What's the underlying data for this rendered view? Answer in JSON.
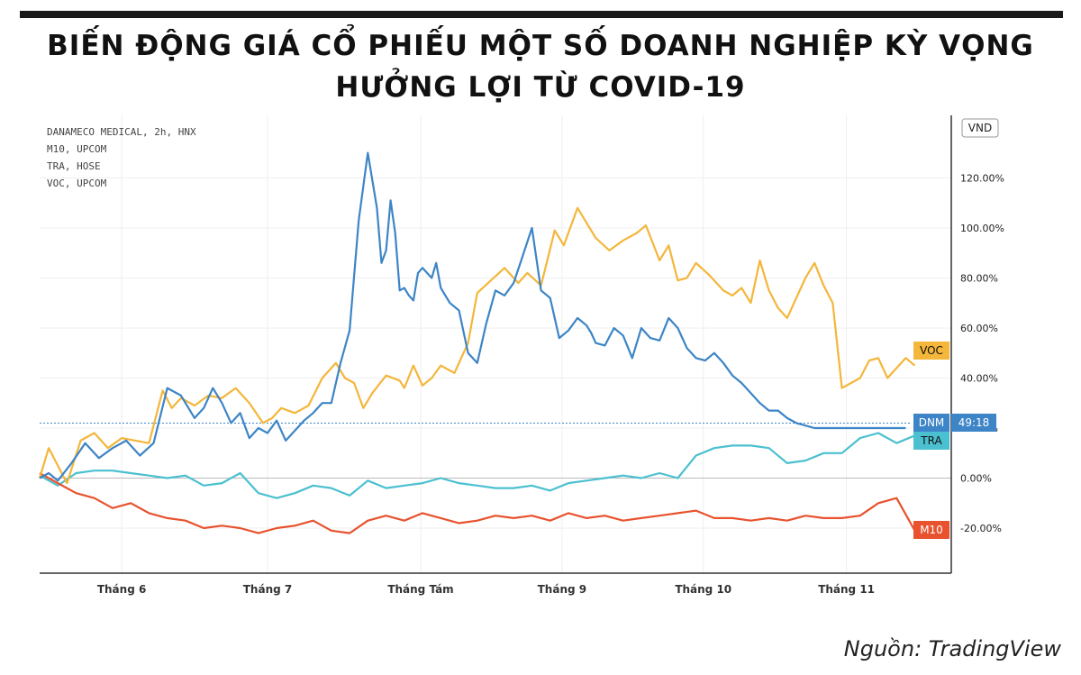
{
  "title": "BIẾN ĐỘNG GIÁ CỔ PHIẾU MỘT SỐ DOANH NGHIỆP KỲ VỌNG HƯỞNG LỢI TỪ COVID-19",
  "title_lines": [
    "BIẾN ĐỘNG GIÁ CỔ PHIẾU MỘT SỐ DOANH NGHIỆP KỲ VỌNG",
    "HƯỞNG LỢI TỪ COVID-19"
  ],
  "source": "Nguồn: TradingView",
  "chart_data": {
    "type": "line",
    "symbols": [
      "DANAMECO MEDICAL, 2h, HNX",
      "M10, UPCOM",
      "TRA, HOSE",
      "VOC, UPCOM"
    ],
    "currency_label": "VND",
    "x_ticks": [
      "Tháng 6",
      "Tháng 7",
      "Tháng Tám",
      "Tháng 9",
      "Tháng 10",
      "Tháng 11"
    ],
    "y_ticks": [
      "-20.00%",
      "0.00%",
      "20.00%",
      "40.00%",
      "60.00%",
      "80.00%",
      "100.00%",
      "120.00%"
    ],
    "y_tick_values": [
      -20,
      0,
      20,
      40,
      60,
      80,
      100,
      120
    ],
    "ylim": [
      -38,
      145
    ],
    "xlim": [
      0,
      1
    ],
    "x_tick_positions": [
      0.09,
      0.25,
      0.418,
      0.573,
      0.728,
      0.885
    ],
    "crosshair_y": 22,
    "grid": true,
    "colors": {
      "DNM": "#3d85c6",
      "VOC": "#f4b63b",
      "TRA": "#4bc0d0",
      "M10": "#e8522e",
      "axis": "#333333",
      "grid": "#efefef",
      "zero": "#bbbbbb",
      "crosshair": "#3d85c6"
    },
    "series": [
      {
        "id": "VOC",
        "x": [
          0,
          0.01,
          0.02,
          0.03,
          0.045,
          0.06,
          0.075,
          0.09,
          0.105,
          0.12,
          0.135,
          0.145,
          0.155,
          0.17,
          0.185,
          0.2,
          0.215,
          0.23,
          0.245,
          0.255,
          0.265,
          0.28,
          0.295,
          0.31,
          0.325,
          0.335,
          0.345,
          0.355,
          0.365,
          0.38,
          0.395,
          0.4,
          0.41,
          0.42,
          0.43,
          0.44,
          0.455,
          0.47,
          0.48,
          0.495,
          0.51,
          0.525,
          0.535,
          0.55,
          0.565,
          0.575,
          0.59,
          0.6,
          0.61,
          0.625,
          0.64,
          0.655,
          0.665,
          0.68,
          0.69,
          0.7,
          0.71,
          0.72,
          0.735,
          0.75,
          0.76,
          0.77,
          0.78,
          0.79,
          0.8,
          0.81,
          0.82,
          0.83,
          0.84,
          0.85,
          0.86,
          0.87,
          0.875,
          0.88,
          0.89,
          0.9,
          0.91,
          0.92,
          0.93,
          0.94,
          0.95,
          0.96
        ],
        "y": [
          0,
          12,
          5,
          -2,
          15,
          18,
          12,
          16,
          15,
          14,
          35,
          28,
          32,
          29,
          33,
          32,
          36,
          30,
          22,
          24,
          28,
          26,
          29,
          40,
          46,
          40,
          38,
          28,
          34,
          41,
          39,
          36,
          45,
          37,
          40,
          45,
          42,
          54,
          74,
          79,
          84,
          78,
          82,
          77,
          99,
          93,
          108,
          102,
          96,
          91,
          95,
          98,
          101,
          87,
          93,
          79,
          80,
          86,
          81,
          75,
          73,
          76,
          70,
          87,
          75,
          68,
          64,
          72,
          80,
          86,
          77,
          70,
          53,
          36,
          38,
          40,
          47,
          48,
          40,
          44,
          48,
          45
        ]
      },
      {
        "id": "DNM",
        "x": [
          0,
          0.01,
          0.02,
          0.035,
          0.05,
          0.065,
          0.08,
          0.095,
          0.11,
          0.125,
          0.14,
          0.155,
          0.17,
          0.18,
          0.19,
          0.2,
          0.21,
          0.22,
          0.23,
          0.24,
          0.25,
          0.26,
          0.27,
          0.28,
          0.29,
          0.3,
          0.31,
          0.32,
          0.33,
          0.34,
          0.35,
          0.36,
          0.37,
          0.375,
          0.38,
          0.385,
          0.39,
          0.395,
          0.4,
          0.405,
          0.41,
          0.415,
          0.42,
          0.425,
          0.43,
          0.435,
          0.44,
          0.45,
          0.46,
          0.47,
          0.48,
          0.49,
          0.5,
          0.51,
          0.52,
          0.53,
          0.54,
          0.55,
          0.56,
          0.57,
          0.58,
          0.59,
          0.6,
          0.605,
          0.61,
          0.62,
          0.63,
          0.64,
          0.65,
          0.66,
          0.67,
          0.68,
          0.69,
          0.7,
          0.71,
          0.72,
          0.73,
          0.74,
          0.75,
          0.76,
          0.77,
          0.78,
          0.79,
          0.8,
          0.81,
          0.82,
          0.83,
          0.84,
          0.85,
          0.86,
          0.87,
          0.88,
          0.89,
          0.9,
          0.91,
          0.92,
          0.93,
          0.94,
          0.95
        ],
        "y": [
          0,
          2,
          -1,
          6,
          14,
          8,
          12,
          15,
          9,
          14,
          36,
          33,
          24,
          28,
          36,
          30,
          22,
          26,
          16,
          20,
          18,
          23,
          15,
          19,
          23,
          26,
          30,
          30,
          46,
          59,
          103,
          130,
          108,
          86,
          91,
          111,
          98,
          75,
          76,
          73,
          71,
          82,
          84,
          82,
          80,
          86,
          76,
          70,
          67,
          50,
          46,
          62,
          75,
          73,
          78,
          89,
          100,
          75,
          72,
          56,
          59,
          64,
          61,
          58,
          54,
          53,
          60,
          57,
          48,
          60,
          56,
          55,
          64,
          60,
          52,
          48,
          47,
          50,
          46,
          41,
          38,
          34,
          30,
          27,
          27,
          24,
          22,
          21,
          20,
          20,
          20,
          20,
          20,
          20,
          20,
          20,
          20,
          20,
          20
        ]
      },
      {
        "id": "TRA",
        "x": [
          0,
          0.02,
          0.04,
          0.06,
          0.08,
          0.1,
          0.12,
          0.14,
          0.16,
          0.18,
          0.2,
          0.22,
          0.24,
          0.26,
          0.28,
          0.3,
          0.32,
          0.34,
          0.36,
          0.38,
          0.4,
          0.42,
          0.44,
          0.46,
          0.48,
          0.5,
          0.52,
          0.54,
          0.56,
          0.58,
          0.6,
          0.62,
          0.64,
          0.66,
          0.68,
          0.7,
          0.72,
          0.74,
          0.76,
          0.78,
          0.8,
          0.82,
          0.84,
          0.86,
          0.88,
          0.9,
          0.92,
          0.94,
          0.96
        ],
        "y": [
          1,
          -3,
          2,
          3,
          3,
          2,
          1,
          0,
          1,
          -3,
          -2,
          2,
          -6,
          -8,
          -6,
          -3,
          -4,
          -7,
          -1,
          -4,
          -3,
          -2,
          0,
          -2,
          -3,
          -4,
          -4,
          -3,
          -5,
          -2,
          -1,
          0,
          1,
          0,
          2,
          0,
          9,
          12,
          13,
          13,
          12,
          6,
          7,
          10,
          10,
          16,
          18,
          14,
          17
        ]
      },
      {
        "id": "M10",
        "x": [
          0,
          0.02,
          0.04,
          0.06,
          0.08,
          0.1,
          0.12,
          0.14,
          0.16,
          0.18,
          0.2,
          0.22,
          0.24,
          0.26,
          0.28,
          0.3,
          0.32,
          0.34,
          0.36,
          0.38,
          0.4,
          0.42,
          0.44,
          0.46,
          0.48,
          0.5,
          0.52,
          0.54,
          0.56,
          0.58,
          0.6,
          0.62,
          0.64,
          0.66,
          0.68,
          0.7,
          0.72,
          0.74,
          0.76,
          0.78,
          0.8,
          0.82,
          0.84,
          0.86,
          0.88,
          0.9,
          0.92,
          0.94,
          0.96
        ],
        "y": [
          2,
          -2,
          -6,
          -8,
          -12,
          -10,
          -14,
          -16,
          -17,
          -20,
          -19,
          -20,
          -22,
          -20,
          -19,
          -17,
          -21,
          -22,
          -17,
          -15,
          -17,
          -14,
          -16,
          -18,
          -17,
          -15,
          -16,
          -15,
          -17,
          -14,
          -16,
          -15,
          -17,
          -16,
          -15,
          -14,
          -13,
          -16,
          -16,
          -17,
          -16,
          -17,
          -15,
          -16,
          -16,
          -15,
          -10,
          -8,
          -21
        ]
      }
    ],
    "end_labels": [
      {
        "series": "VOC",
        "text": "VOC",
        "value": 51
      },
      {
        "series": "DNM",
        "text": "DNM",
        "value_text": "49:18",
        "value": 21
      },
      {
        "series": "TRA",
        "text": "TRA",
        "value": 14
      },
      {
        "series": "M10",
        "text": "M10",
        "value": -21
      }
    ]
  }
}
